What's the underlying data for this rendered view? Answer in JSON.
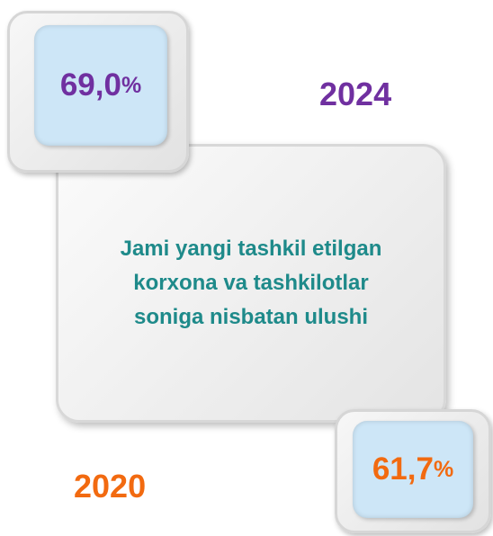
{
  "callouts": [
    {
      "value": "69,0",
      "unit": "%",
      "year": "2024"
    },
    {
      "value": "61,7",
      "unit": "%",
      "year": "2020"
    }
  ],
  "center": {
    "lines": [
      "Jami yangi tashkil etilgan",
      "korxona va tashkilotlar",
      "soniga nisbatan ulushi"
    ]
  }
}
